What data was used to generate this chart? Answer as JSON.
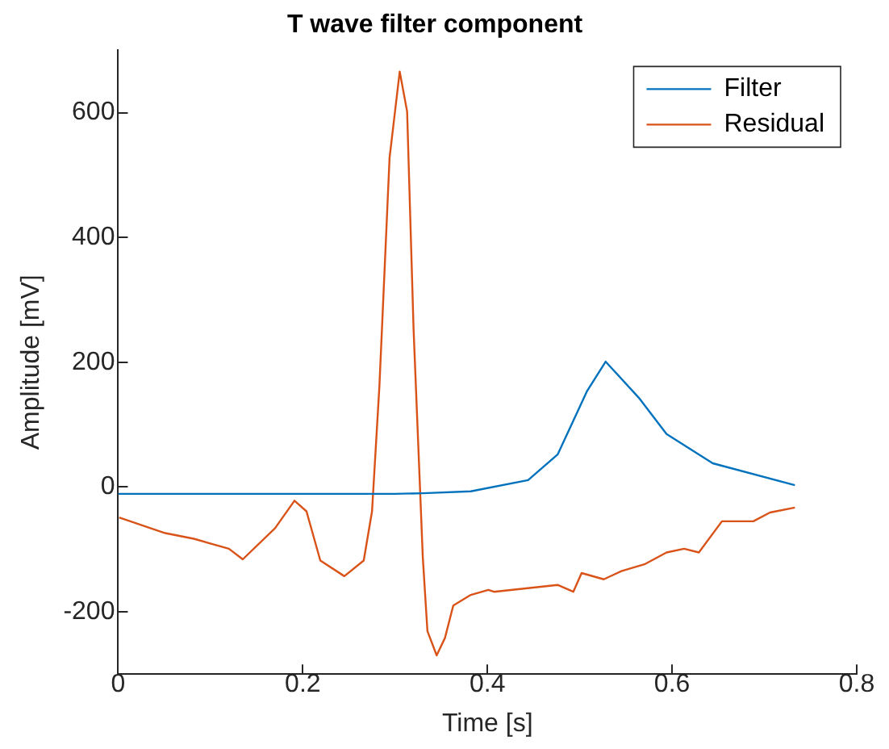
{
  "chart_data": {
    "type": "line",
    "title": "T wave filter component",
    "xlabel": "Time [s]",
    "ylabel": "Amplitude [mV]",
    "xlim": [
      0,
      0.8
    ],
    "xticks": [
      0,
      0.2,
      0.4,
      0.6,
      0.8
    ],
    "ylim": [
      -300,
      700
    ],
    "yticks": [
      -200,
      0,
      200,
      400,
      600
    ],
    "grid": false,
    "legend": "top right",
    "marker": "none",
    "line_style": "solid",
    "series": [
      {
        "name": "Filter",
        "color": "#0072bd",
        "x": [
          0,
          0.1,
          0.2,
          0.3,
          0.33,
          0.382,
          0.444,
          0.476,
          0.508,
          0.528,
          0.564,
          0.594,
          0.644,
          0.733
        ],
        "values": [
          -11,
          -11,
          -11,
          -11,
          -10,
          -7,
          11,
          52,
          154,
          201,
          143,
          85,
          38,
          3
        ]
      },
      {
        "name": "Residual",
        "color": "#d95319",
        "x": [
          0.001,
          0.051,
          0.082,
          0.12,
          0.135,
          0.17,
          0.191,
          0.204,
          0.219,
          0.245,
          0.266,
          0.275,
          0.283,
          0.294,
          0.305,
          0.313,
          0.32,
          0.33,
          0.335,
          0.345,
          0.354,
          0.363,
          0.382,
          0.401,
          0.407,
          0.476,
          0.493,
          0.502,
          0.526,
          0.545,
          0.57,
          0.594,
          0.613,
          0.629,
          0.654,
          0.688,
          0.706,
          0.733
        ],
        "values": [
          -49,
          -74,
          -83,
          -99,
          -116,
          -66,
          -22,
          -39,
          -118,
          -143,
          -118,
          -39,
          162,
          528,
          666,
          602,
          253,
          -113,
          -231,
          -270,
          -242,
          -190,
          -173,
          -165,
          -168,
          -157,
          -168,
          -138,
          -148,
          -135,
          -124,
          -105,
          -99,
          -105,
          -55,
          -55,
          -41,
          -33
        ]
      }
    ]
  }
}
